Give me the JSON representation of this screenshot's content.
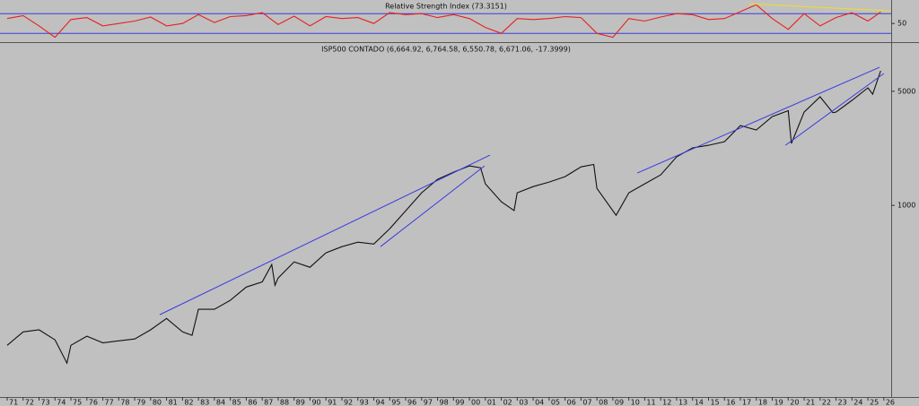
{
  "chart_data": [
    {
      "type": "line",
      "title": "Relative Strength Index (73.3151)",
      "color": "#e8201c",
      "x": [
        1971,
        1972,
        1973,
        1974,
        1975,
        1976,
        1977,
        1978,
        1979,
        1980,
        1981,
        1982,
        1983,
        1984,
        1985,
        1986,
        1987,
        1988,
        1989,
        1990,
        1991,
        1992,
        1993,
        1994,
        1995,
        1996,
        1997,
        1998,
        1999,
        2000,
        2001,
        2002,
        2003,
        2004,
        2005,
        2006,
        2007,
        2008,
        2009,
        2010,
        2011,
        2012,
        2013,
        2014,
        2015,
        2016,
        2017,
        2018,
        2019,
        2020,
        2021,
        2022,
        2023,
        2024,
        2025,
        2025.8
      ],
      "values": [
        60,
        66,
        45,
        22,
        58,
        62,
        45,
        50,
        55,
        63,
        45,
        50,
        68,
        52,
        64,
        66,
        72,
        48,
        65,
        45,
        64,
        60,
        62,
        50,
        72,
        68,
        70,
        62,
        68,
        60,
        42,
        30,
        60,
        58,
        60,
        64,
        62,
        30,
        22,
        60,
        55,
        63,
        70,
        68,
        58,
        60,
        74,
        88,
        60,
        38,
        70,
        45,
        62,
        72,
        55,
        73.3
      ],
      "xlim": [
        1970.55,
        2026.46
      ],
      "ylim": [
        14,
        94
      ],
      "yticks": [
        50
      ],
      "hlines": [
        70,
        30
      ],
      "hline_color": "#3a3ae0",
      "trendlines": [
        {
          "x": [
            2017.57,
            2026.4
          ],
          "y": [
            90,
            75.5
          ],
          "color": "#f0e020"
        }
      ]
    },
    {
      "type": "line",
      "title": "ISP500 CONTADO (6,664.92, 6,764.58, 6,550.78, 6,671.06, -17.3999)",
      "color": "#111111",
      "log_y": true,
      "x": [
        1971,
        1972,
        1973,
        1974,
        1974.75,
        1975,
        1976,
        1977,
        1978,
        1979,
        1980,
        1981,
        1982,
        1982.6,
        1983,
        1984,
        1985,
        1986,
        1987,
        1987.6,
        1987.8,
        1988,
        1989,
        1990,
        1991,
        1992,
        1993,
        1994,
        1995,
        1996,
        1997,
        1998,
        1999,
        2000,
        2000.7,
        2001,
        2002,
        2002.8,
        2003,
        2004,
        2005,
        2006,
        2007,
        2007.8,
        2008,
        2009.2,
        2010,
        2011,
        2012,
        2013,
        2014,
        2015,
        2016,
        2017,
        2018,
        2019,
        2020,
        2020.2,
        2021,
        2022,
        2022.8,
        2023,
        2024,
        2025,
        2025.3,
        2025.8
      ],
      "values": [
        139,
        168,
        173,
        150,
        108,
        139,
        158,
        144,
        148,
        152,
        173,
        203,
        168,
        160,
        231,
        231,
        262,
        316,
        340,
        434,
        324,
        359,
        451,
        418,
        512,
        559,
        595,
        580,
        719,
        927,
        1194,
        1443,
        1597,
        1745,
        1700,
        1355,
        1052,
        930,
        1194,
        1303,
        1390,
        1500,
        1722,
        1780,
        1271,
        870,
        1194,
        1355,
        1538,
        1982,
        2249,
        2333,
        2455,
        3083,
        2897,
        3499,
        3800,
        2393,
        3726,
        4624,
        3700,
        3726,
        4395,
        5248,
        4800,
        6671
      ],
      "xlim": [
        1970.55,
        2026.46
      ],
      "ylim": [
        67,
        9750
      ],
      "yticks": [
        1000,
        5000
      ],
      "xticks": [
        {
          "value": 1971,
          "label": "71"
        },
        {
          "value": 1972,
          "label": "72"
        },
        {
          "value": 1973,
          "label": "73"
        },
        {
          "value": 1974,
          "label": "74"
        },
        {
          "value": 1975,
          "label": "75"
        },
        {
          "value": 1976,
          "label": "76"
        },
        {
          "value": 1977,
          "label": "77"
        },
        {
          "value": 1978,
          "label": "78"
        },
        {
          "value": 1979,
          "label": "79"
        },
        {
          "value": 1980,
          "label": "80"
        },
        {
          "value": 1981,
          "label": "81"
        },
        {
          "value": 1982,
          "label": "82"
        },
        {
          "value": 1983,
          "label": "83"
        },
        {
          "value": 1984,
          "label": "84"
        },
        {
          "value": 1985,
          "label": "85"
        },
        {
          "value": 1986,
          "label": "86"
        },
        {
          "value": 1987,
          "label": "87"
        },
        {
          "value": 1988,
          "label": "88"
        },
        {
          "value": 1989,
          "label": "89"
        },
        {
          "value": 1990,
          "label": "90"
        },
        {
          "value": 1991,
          "label": "91"
        },
        {
          "value": 1992,
          "label": "92"
        },
        {
          "value": 1993,
          "label": "93"
        },
        {
          "value": 1994,
          "label": "94"
        },
        {
          "value": 1995,
          "label": "95"
        },
        {
          "value": 1996,
          "label": "96"
        },
        {
          "value": 1997,
          "label": "97"
        },
        {
          "value": 1998,
          "label": "98"
        },
        {
          "value": 1999,
          "label": "99"
        },
        {
          "value": 2000,
          "label": "00"
        },
        {
          "value": 2001,
          "label": "01"
        },
        {
          "value": 2002,
          "label": "02"
        },
        {
          "value": 2003,
          "label": "03"
        },
        {
          "value": 2004,
          "label": "04"
        },
        {
          "value": 2005,
          "label": "05"
        },
        {
          "value": 2006,
          "label": "06"
        },
        {
          "value": 2007,
          "label": "07"
        },
        {
          "value": 2008,
          "label": "08"
        },
        {
          "value": 2009,
          "label": "09"
        },
        {
          "value": 2010,
          "label": "10"
        },
        {
          "value": 2011,
          "label": "11"
        },
        {
          "value": 2012,
          "label": "12"
        },
        {
          "value": 2013,
          "label": "13"
        },
        {
          "value": 2014,
          "label": "14"
        },
        {
          "value": 2015,
          "label": "15"
        },
        {
          "value": 2016,
          "label": "16"
        },
        {
          "value": 2017,
          "label": "17"
        },
        {
          "value": 2018,
          "label": "18"
        },
        {
          "value": 2019,
          "label": "19"
        },
        {
          "value": 2020,
          "label": "20"
        },
        {
          "value": 2021,
          "label": "21"
        },
        {
          "value": 2022,
          "label": "22"
        },
        {
          "value": 2023,
          "label": "23"
        },
        {
          "value": 2024,
          "label": "24"
        },
        {
          "value": 2025,
          "label": "25"
        },
        {
          "value": 2026,
          "label": "26"
        }
      ],
      "trendlines": [
        {
          "x": [
            1980.57,
            2001.29
          ],
          "y": [
            214,
            2031
          ],
          "color": "#3a3ae0"
        },
        {
          "x": [
            1994.42,
            2000.95
          ],
          "y": [
            559,
            1745
          ],
          "color": "#3a3ae0"
        },
        {
          "x": [
            2010.53,
            2025.73
          ],
          "y": [
            1578,
            7015
          ],
          "color": "#3a3ae0"
        },
        {
          "x": [
            2019.82,
            2026.0
          ],
          "y": [
            2333,
            6427
          ],
          "color": "#3a3ae0"
        }
      ]
    }
  ]
}
